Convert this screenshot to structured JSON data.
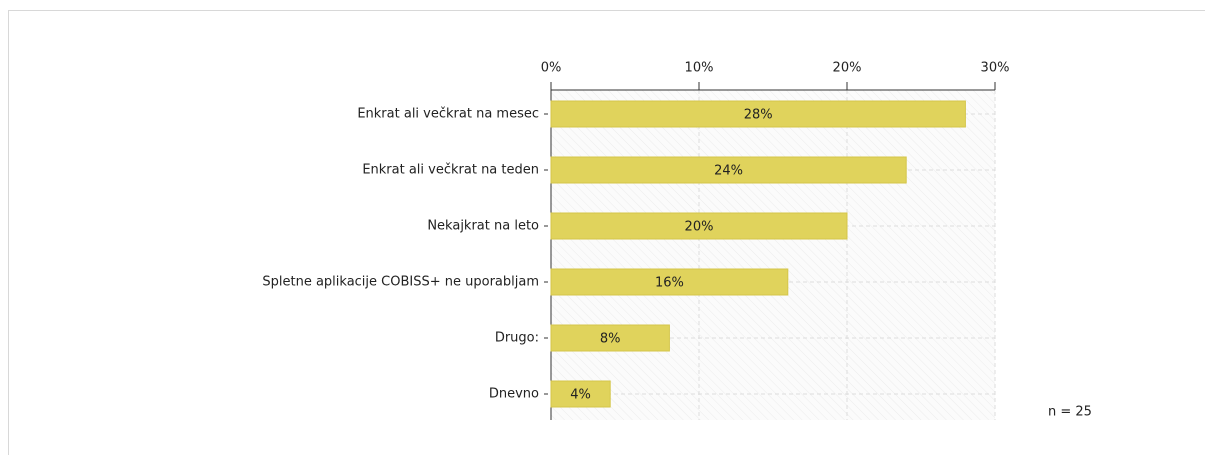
{
  "chart_data": {
    "type": "bar",
    "orientation": "horizontal",
    "categories": [
      "Enkrat ali večkrat na mesec",
      "Enkrat ali večkrat na teden",
      "Nekajkrat na leto",
      "Spletne aplikacije COBISS+ ne uporabljam",
      "Drugo:",
      "Dnevno"
    ],
    "values": [
      28,
      24,
      20,
      16,
      8,
      4
    ],
    "value_labels": [
      "28%",
      "24%",
      "20%",
      "16%",
      "8%",
      "4%"
    ],
    "color": "#e0d35c",
    "xlim": [
      0,
      30
    ],
    "xticks": [
      {
        "value": 0,
        "label": "0%"
      },
      {
        "value": 10,
        "label": "10%"
      },
      {
        "value": 20,
        "label": "20%"
      },
      {
        "value": 30,
        "label": "30%"
      }
    ],
    "grid": true,
    "annotation": "n = 25"
  }
}
